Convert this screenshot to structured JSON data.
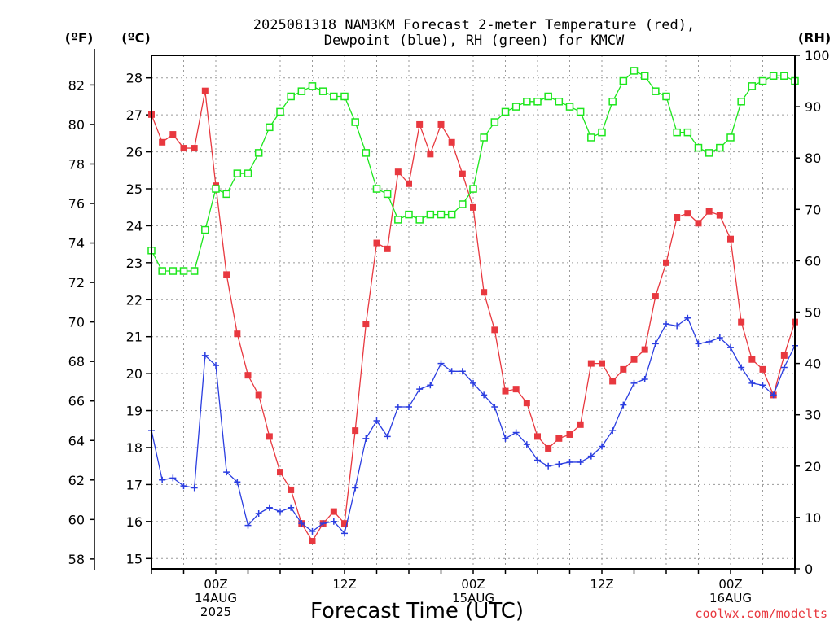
{
  "title_line1": "2025081318 NAM3KM Forecast 2-meter Temperature (red),",
  "title_line2": "Dewpoint (blue), RH (green) for KMCW",
  "credit": "coolwx.com/modelts",
  "chart_data": {
    "type": "line",
    "title": "2025081318 NAM3KM Forecast 2-meter Temperature (red), Dewpoint (blue), RH (green) for KMCW",
    "xlabel": "Forecast Time (UTC)",
    "x_unit": "forecast hour from 2025-08-13 18Z",
    "x": [
      0,
      1,
      2,
      3,
      4,
      5,
      6,
      7,
      8,
      9,
      10,
      11,
      12,
      13,
      14,
      15,
      16,
      17,
      18,
      19,
      20,
      21,
      22,
      23,
      24,
      25,
      26,
      27,
      28,
      29,
      30,
      31,
      32,
      33,
      34,
      35,
      36,
      37,
      38,
      39,
      40,
      41,
      42,
      43,
      44,
      45,
      46,
      47,
      48,
      49,
      50,
      51,
      52,
      53,
      54,
      55,
      56,
      57,
      58,
      59,
      60
    ],
    "x_tick_labels": [
      {
        "x": 6,
        "lines": [
          "00Z",
          "14AUG",
          "2025"
        ]
      },
      {
        "x": 18,
        "lines": [
          "12Z"
        ]
      },
      {
        "x": 30,
        "lines": [
          "00Z",
          "15AUG"
        ]
      },
      {
        "x": 42,
        "lines": [
          "12Z"
        ]
      },
      {
        "x": 54,
        "lines": [
          "00Z",
          "16AUG"
        ]
      }
    ],
    "xlim": [
      0,
      60
    ],
    "axes": {
      "F": {
        "unit_label": "(ºF)",
        "ylim": [
          57.5,
          83.5
        ],
        "ticks": [
          58,
          60,
          62,
          64,
          66,
          68,
          70,
          72,
          74,
          76,
          78,
          80,
          82
        ]
      },
      "C": {
        "unit_label": "(ºC)",
        "ylim": [
          14.72,
          28.61
        ],
        "ticks": [
          15,
          16,
          17,
          18,
          19,
          20,
          21,
          22,
          23,
          24,
          25,
          26,
          27,
          28
        ]
      },
      "RH": {
        "unit_label": "(RH)",
        "ylim": [
          0,
          100
        ],
        "ticks": [
          0,
          10,
          20,
          30,
          40,
          50,
          60,
          70,
          80,
          90,
          100
        ]
      }
    },
    "grid": true,
    "series": [
      {
        "name": "Temperature",
        "axis": "F",
        "color": "#e8383f",
        "marker": "filled-square",
        "values": [
          80.5,
          79.1,
          79.5,
          78.8,
          78.8,
          81.7,
          76.9,
          72.4,
          69.4,
          67.3,
          66.3,
          64.2,
          62.4,
          61.5,
          59.8,
          58.9,
          59.8,
          60.4,
          59.8,
          64.5,
          69.9,
          74.0,
          73.7,
          77.6,
          77.0,
          80.0,
          78.5,
          80.0,
          79.1,
          77.5,
          75.8,
          71.5,
          69.6,
          66.5,
          66.6,
          65.9,
          64.2,
          63.6,
          64.1,
          64.3,
          64.8,
          67.9,
          67.9,
          67.0,
          67.6,
          68.1,
          68.6,
          71.3,
          73.0,
          75.3,
          75.5,
          75.0,
          75.6,
          75.4,
          74.2,
          70.0,
          68.1,
          67.6,
          66.3,
          68.3,
          70.0
        ]
      },
      {
        "name": "Dewpoint",
        "axis": "F",
        "color": "#2a3de0",
        "marker": "plus",
        "values": [
          64.5,
          62.0,
          62.1,
          61.7,
          61.6,
          68.3,
          67.8,
          62.4,
          61.9,
          59.7,
          60.3,
          60.6,
          60.4,
          60.6,
          59.8,
          59.4,
          59.8,
          59.9,
          59.3,
          61.6,
          64.1,
          65.0,
          64.2,
          65.7,
          65.7,
          66.6,
          66.8,
          67.9,
          67.5,
          67.5,
          66.9,
          66.3,
          65.7,
          64.1,
          64.4,
          63.8,
          63.0,
          62.7,
          62.8,
          62.9,
          62.9,
          63.2,
          63.7,
          64.5,
          65.8,
          66.9,
          67.1,
          68.9,
          69.9,
          69.8,
          70.2,
          68.9,
          69.0,
          69.2,
          68.7,
          67.7,
          66.9,
          66.8,
          66.3,
          67.7,
          68.8
        ]
      },
      {
        "name": "RH",
        "axis": "RH",
        "color": "#1ce61c",
        "marker": "open-square",
        "values": [
          62,
          58,
          58,
          58,
          58,
          66,
          74,
          73,
          77,
          77,
          81,
          86,
          89,
          92,
          93,
          94,
          93,
          92,
          92,
          87,
          81,
          74,
          73,
          68,
          69,
          68,
          69,
          69,
          69,
          71,
          74,
          84,
          87,
          89,
          90,
          91,
          91,
          92,
          91,
          90,
          89,
          84,
          85,
          91,
          95,
          97,
          96,
          93,
          92,
          85,
          85,
          82,
          81,
          82,
          84,
          91,
          94,
          95,
          96,
          96,
          95
        ]
      }
    ]
  }
}
